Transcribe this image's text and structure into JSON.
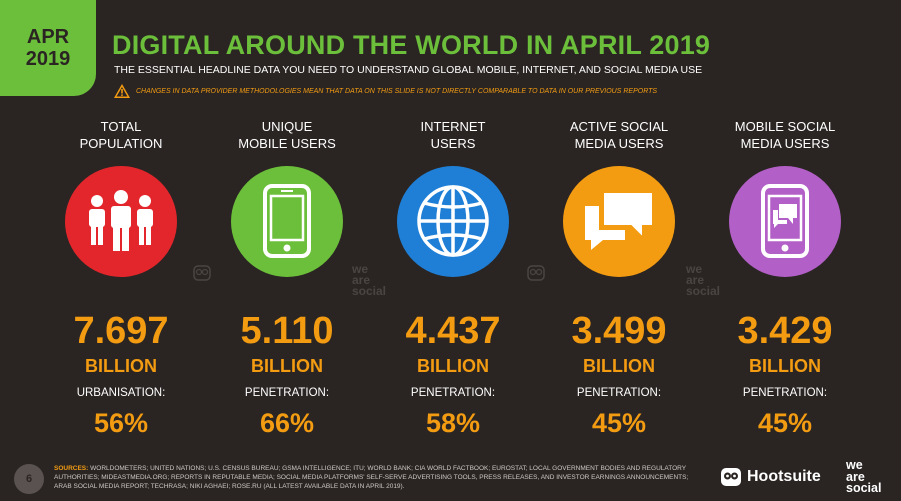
{
  "badge": {
    "month": "APR",
    "year": "2019"
  },
  "title": "DIGITAL AROUND THE WORLD IN APRIL 2019",
  "subtitle": "THE ESSENTIAL HEADLINE DATA YOU NEED TO UNDERSTAND GLOBAL MOBILE, INTERNET, AND SOCIAL MEDIA USE",
  "warning": "CHANGES IN DATA PROVIDER METHODOLOGIES MEAN THAT DATA ON THIS SLIDE IS NOT DIRECTLY COMPARABLE TO DATA IN OUR PREVIOUS REPORTS",
  "columns": [
    {
      "label1": "TOTAL",
      "label2": "POPULATION",
      "icon": "people-icon",
      "color": "#e3262b",
      "value": "7.697",
      "unit": "BILLION",
      "metric": "URBANISATION:",
      "pct": "56%"
    },
    {
      "label1": "UNIQUE",
      "label2": "MOBILE USERS",
      "icon": "mobile-phone-icon",
      "color": "#6cbf3a",
      "value": "5.110",
      "unit": "BILLION",
      "metric": "PENETRATION:",
      "pct": "66%"
    },
    {
      "label1": "INTERNET",
      "label2": "USERS",
      "icon": "globe-icon",
      "color": "#1f7fd6",
      "value": "4.437",
      "unit": "BILLION",
      "metric": "PENETRATION:",
      "pct": "58%"
    },
    {
      "label1": "ACTIVE SOCIAL",
      "label2": "MEDIA USERS",
      "icon": "chat-bubbles-icon",
      "color": "#f39c12",
      "value": "3.499",
      "unit": "BILLION",
      "metric": "PENETRATION:",
      "pct": "45%"
    },
    {
      "label1": "MOBILE SOCIAL",
      "label2": "MEDIA USERS",
      "icon": "phone-chat-icon",
      "color": "#b25fc7",
      "value": "3.429",
      "unit": "BILLION",
      "metric": "PENETRATION:",
      "pct": "45%"
    }
  ],
  "watermark": {
    "line1": "we",
    "line2": "are",
    "line3": "social"
  },
  "footer": {
    "page": "6",
    "sources_label": "SOURCES:",
    "sources": "WORLDOMETERS; UNITED NATIONS; U.S. CENSUS BUREAU; GSMA INTELLIGENCE; ITU; WORLD BANK; CIA WORLD FACTBOOK; EUROSTAT; LOCAL GOVERNMENT BODIES AND REGULATORY AUTHORITIES; MIDEASTMEDIA.ORG; REPORTS IN REPUTABLE MEDIA; SOCIAL MEDIA PLATFORMS' SELF-SERVE ADVERTISING TOOLS, PRESS RELEASES, AND INVESTOR EARNINGS ANNOUNCEMENTS; ARAB SOCIAL MEDIA REPORT; TECHRASA; NIKI AGHAEI; ROSE.RU (ALL LATEST AVAILABLE DATA IN APRIL 2019).",
    "hootsuite": "Hootsuite",
    "was1": "we",
    "was2": "are",
    "was3": "social"
  }
}
